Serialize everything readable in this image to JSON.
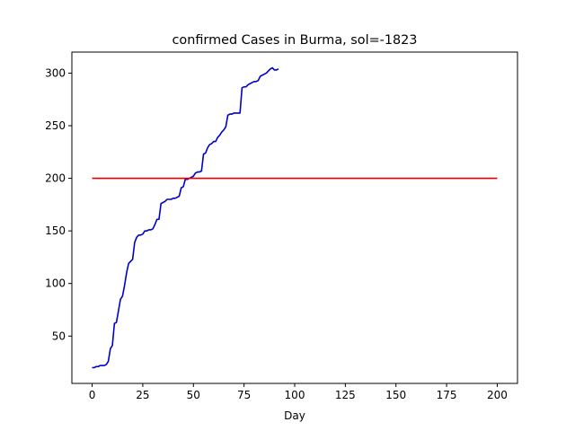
{
  "chart_data": {
    "type": "line",
    "title": "confirmed Cases in Burma, sol=-1823",
    "xlabel": "Day",
    "ylabel": "",
    "xlim": [
      -10,
      210
    ],
    "ylim": [
      5,
      320
    ],
    "xticks": [
      0,
      25,
      50,
      75,
      100,
      125,
      150,
      175,
      200
    ],
    "yticks": [
      50,
      100,
      150,
      200,
      250,
      300
    ],
    "grid": false,
    "legend": "none",
    "series": [
      {
        "color": "#0000cc",
        "x": [
          0,
          1,
          2,
          3,
          4,
          5,
          6,
          7,
          8,
          9,
          10,
          11,
          12,
          13,
          14,
          15,
          16,
          17,
          18,
          19,
          20,
          21,
          22,
          23,
          24,
          25,
          26,
          27,
          28,
          29,
          30,
          31,
          32,
          33,
          34,
          35,
          36,
          37,
          38,
          39,
          40,
          41,
          42,
          43,
          44,
          45,
          46,
          47,
          48,
          49,
          50,
          51,
          52,
          53,
          54,
          55,
          56,
          57,
          58,
          59,
          60,
          61,
          62,
          63,
          64,
          65,
          66,
          67,
          68,
          69,
          70,
          71,
          72,
          73,
          74,
          75,
          76,
          77,
          78,
          79,
          80,
          81,
          82,
          83,
          84,
          85,
          86,
          87,
          88,
          89,
          90,
          91,
          92
        ],
        "y": [
          20,
          20,
          21,
          21,
          22,
          22,
          22,
          23,
          26,
          38,
          41,
          62,
          63,
          74,
          85,
          88,
          98,
          110,
          119,
          121,
          123,
          139,
          144,
          146,
          146,
          147,
          150,
          150,
          151,
          151,
          152,
          156,
          161,
          161,
          176,
          177,
          178,
          180,
          180,
          180,
          181,
          181,
          182,
          183,
          191,
          192,
          199,
          199,
          200,
          201,
          202,
          205,
          206,
          206,
          207,
          223,
          224,
          229,
          232,
          233,
          235,
          235,
          239,
          241,
          244,
          246,
          249,
          260,
          261,
          261,
          262,
          262,
          262,
          262,
          286,
          287,
          287,
          289,
          290,
          291,
          292,
          292,
          293,
          297,
          298,
          299,
          300,
          302,
          304,
          305,
          303,
          303,
          304
        ]
      },
      {
        "color": "#e00000",
        "x": [
          0,
          200
        ],
        "y": [
          200,
          200
        ]
      }
    ]
  }
}
